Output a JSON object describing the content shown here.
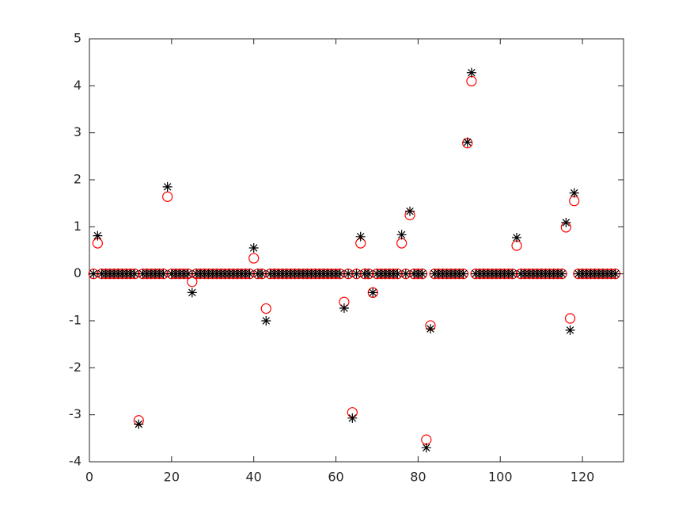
{
  "chart_data": {
    "type": "scatter",
    "x": [
      1,
      2,
      3,
      4,
      5,
      6,
      7,
      8,
      9,
      10,
      11,
      12,
      13,
      14,
      15,
      16,
      17,
      18,
      19,
      20,
      21,
      22,
      23,
      24,
      25,
      26,
      27,
      28,
      29,
      30,
      31,
      32,
      33,
      34,
      35,
      36,
      37,
      38,
      39,
      40,
      41,
      42,
      43,
      44,
      45,
      46,
      47,
      48,
      49,
      50,
      51,
      52,
      53,
      54,
      55,
      56,
      57,
      58,
      59,
      60,
      61,
      62,
      63,
      64,
      65,
      66,
      67,
      68,
      69,
      70,
      71,
      72,
      73,
      74,
      75,
      76,
      77,
      78,
      79,
      80,
      81,
      82,
      83,
      84,
      85,
      86,
      87,
      88,
      89,
      90,
      91,
      92,
      93,
      94,
      95,
      96,
      97,
      98,
      99,
      100,
      101,
      102,
      103,
      104,
      105,
      106,
      107,
      108,
      109,
      110,
      111,
      112,
      113,
      114,
      115,
      116,
      117,
      118,
      119,
      120,
      121,
      122,
      123,
      124,
      125,
      126,
      127,
      128
    ],
    "series": [
      {
        "color": "#ff0000",
        "marker": "circle",
        "values": [
          0,
          0.65,
          0,
          0,
          0,
          0,
          0,
          0,
          0,
          0,
          0,
          -3.12,
          0,
          0,
          0,
          0,
          0,
          0,
          1.64,
          0,
          0,
          0,
          0,
          0,
          -0.17,
          0,
          0,
          0,
          0,
          0,
          0,
          0,
          0,
          0,
          0,
          0,
          0,
          0,
          0,
          0.33,
          0,
          0,
          -0.74,
          0,
          0,
          0,
          0,
          0,
          0,
          0,
          0,
          0,
          0,
          0,
          0,
          0,
          0,
          0,
          0,
          0,
          0,
          -0.6,
          0,
          -2.95,
          0,
          0.65,
          0,
          0,
          -0.4,
          0,
          0,
          0,
          0,
          0,
          0,
          0.65,
          0,
          1.25,
          0,
          0,
          0,
          -3.53,
          -1.1,
          0,
          0,
          0,
          0,
          0,
          0,
          0,
          0,
          2.78,
          4.1,
          0,
          0,
          0,
          0,
          0,
          0,
          0,
          0,
          0,
          0,
          0.6,
          0,
          0,
          0,
          0,
          0,
          0,
          0,
          0,
          0,
          0,
          0,
          0.99,
          -0.95,
          1.55,
          0,
          0,
          0,
          0,
          0,
          0,
          0,
          0,
          0,
          0
        ]
      },
      {
        "color": "#000000",
        "marker": "asterisk",
        "values": [
          0,
          0.81,
          0,
          0,
          0,
          0,
          0,
          0,
          0,
          0,
          0,
          -3.2,
          0,
          0,
          0,
          0,
          0,
          0,
          1.85,
          0,
          0,
          0,
          0,
          0,
          -0.4,
          0,
          0,
          0,
          0,
          0,
          0,
          0,
          0,
          0,
          0,
          0,
          0,
          0,
          0,
          0.55,
          0,
          0,
          -1,
          0,
          0,
          0,
          0,
          0,
          0,
          0,
          0,
          0,
          0,
          0,
          0,
          0,
          0,
          0,
          0,
          0,
          0,
          -0.73,
          0,
          -3.07,
          0,
          0.79,
          0,
          0,
          -0.4,
          0,
          0,
          0,
          0,
          0,
          0,
          0.83,
          0,
          1.33,
          0,
          0,
          0,
          -3.7,
          -1.17,
          0,
          0,
          0,
          0,
          0,
          0,
          0,
          0,
          2.8,
          4.28,
          0,
          0,
          0,
          0,
          0,
          0,
          0,
          0,
          0,
          0,
          0.77,
          0,
          0,
          0,
          0,
          0,
          0,
          0,
          0,
          0,
          0,
          0,
          1.09,
          -1.2,
          1.72,
          0,
          0,
          0,
          0,
          0,
          0,
          0,
          0,
          0,
          0
        ]
      }
    ],
    "xlim": [
      0,
      130
    ],
    "xticks": [
      0,
      20,
      40,
      60,
      80,
      100,
      120
    ],
    "ylim": [
      -4,
      5
    ],
    "yticks": [
      -4,
      -3,
      -2,
      -1,
      0,
      1,
      2,
      3,
      4,
      5
    ],
    "grid": false
  }
}
